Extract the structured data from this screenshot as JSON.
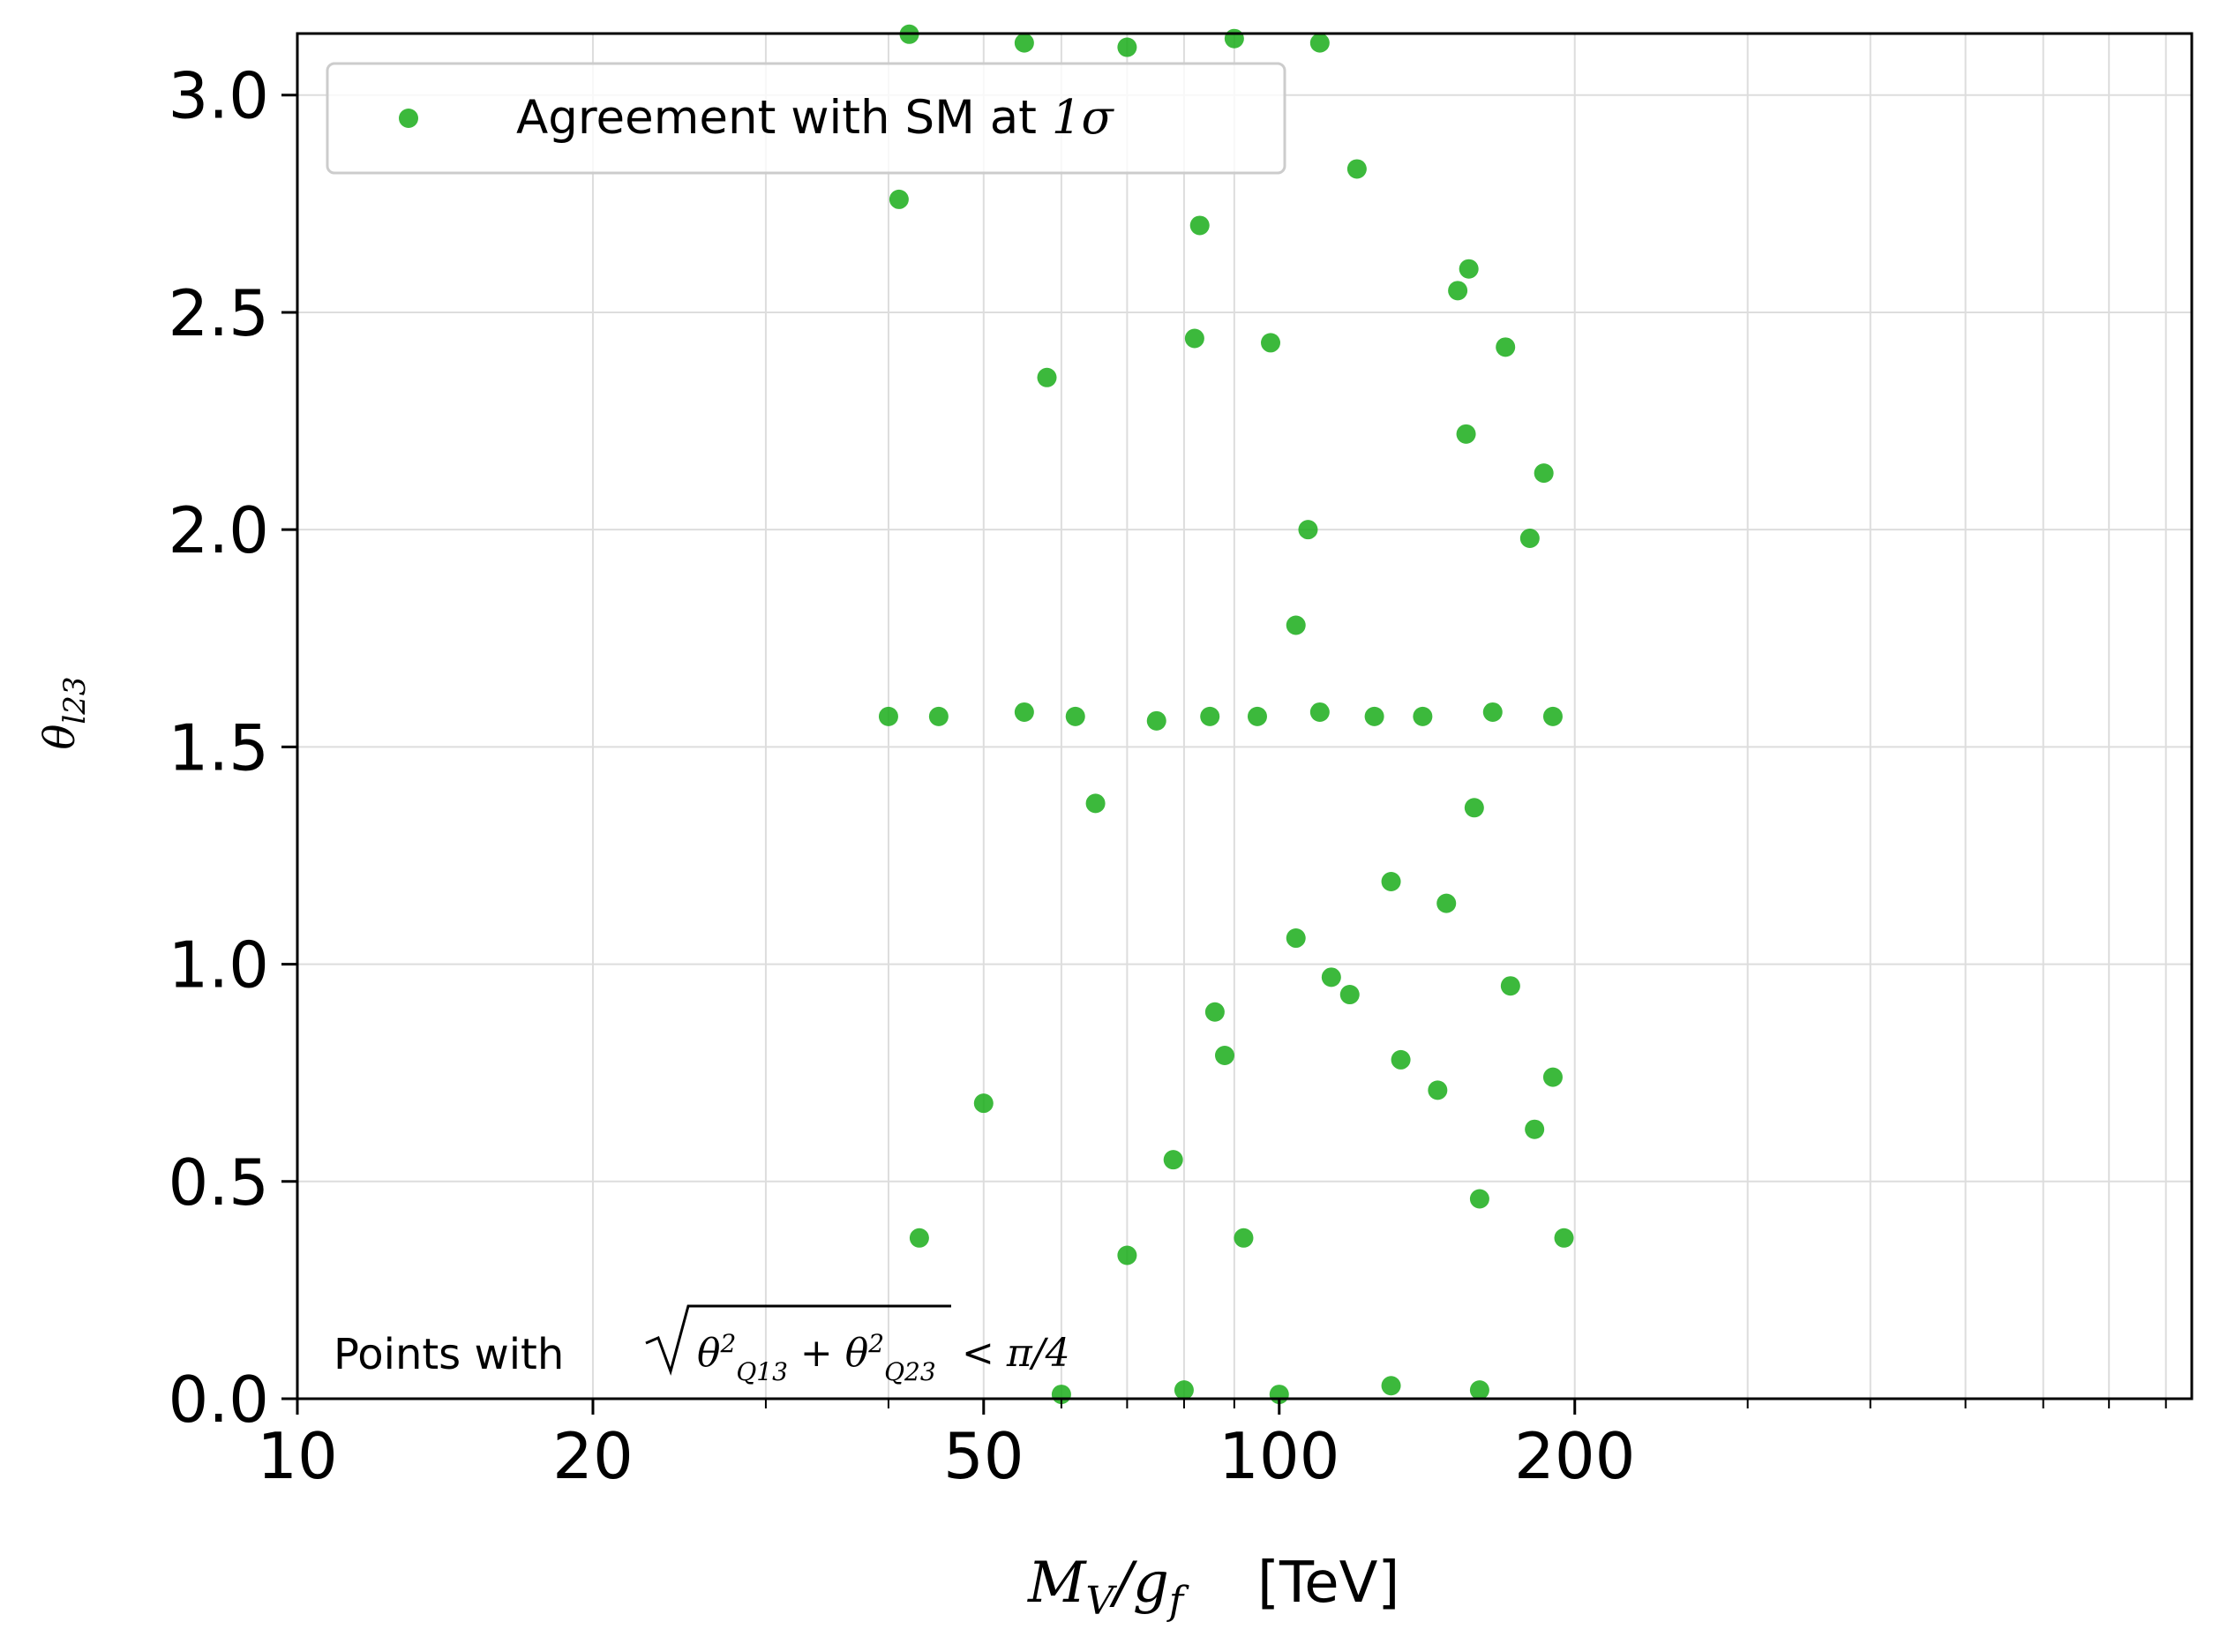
{
  "chart_data": {
    "type": "scatter",
    "xscale": "log",
    "xlim": [
      10,
      850
    ],
    "ylim": [
      0,
      3.1416
    ],
    "grid": true,
    "legend_position": "top-left",
    "xticks": [
      {
        "value": 10,
        "label": "10"
      },
      {
        "value": 20,
        "label": "20"
      },
      {
        "value": 50,
        "label": "50"
      },
      {
        "value": 100,
        "label": "100"
      },
      {
        "value": 200,
        "label": "200"
      }
    ],
    "yticks": [
      {
        "value": 0.0,
        "label": "0.0"
      },
      {
        "value": 0.5,
        "label": "0.5"
      },
      {
        "value": 1.0,
        "label": "1.0"
      },
      {
        "value": 1.5,
        "label": "1.5"
      },
      {
        "value": 2.0,
        "label": "2.0"
      },
      {
        "value": 2.5,
        "label": "2.5"
      },
      {
        "value": 3.0,
        "label": "3.0"
      }
    ],
    "xlabel": {
      "main": "M",
      "sub": "V",
      "slash": "/",
      "main2": "g",
      "sub2": "f",
      "unit": "[TeV]"
    },
    "ylabel": {
      "main": "θ",
      "sub": "l23"
    },
    "annotation": {
      "prefix": "Points with",
      "sqrt_body": "θ²Q13 + θ²Q23",
      "suffix": "< π/4"
    },
    "series": [
      {
        "name": "Agreement with SM at 1σ",
        "color": "#1aad1a",
        "points": [
          [
            41,
            2.76
          ],
          [
            43,
            0.37
          ],
          [
            50,
            0.68
          ],
          [
            58,
            2.35
          ],
          [
            65,
            1.37
          ],
          [
            70,
            0.33
          ],
          [
            78,
            0.55
          ],
          [
            82,
            2.44
          ],
          [
            83,
            2.7
          ],
          [
            86,
            0.89
          ],
          [
            88,
            0.79
          ],
          [
            92,
            0.37
          ],
          [
            98,
            2.43
          ],
          [
            107,
            2.0
          ],
          [
            104,
            1.06
          ],
          [
            104,
            1.78
          ],
          [
            113,
            0.97
          ],
          [
            120,
            2.83
          ],
          [
            118,
            0.93
          ],
          [
            130,
            1.19
          ],
          [
            133,
            0.78
          ],
          [
            145,
            0.71
          ],
          [
            148,
            1.14
          ],
          [
            152,
            2.55
          ],
          [
            155,
            2.22
          ],
          [
            156,
            2.6
          ],
          [
            158,
            1.36
          ],
          [
            160,
            0.46
          ],
          [
            170,
            2.42
          ],
          [
            172,
            0.95
          ],
          [
            180,
            1.98
          ],
          [
            182,
            0.62
          ],
          [
            186,
            2.13
          ],
          [
            190,
            0.74
          ],
          [
            195,
            0.37
          ],
          [
            40,
            1.57
          ],
          [
            45,
            1.57
          ],
          [
            55,
            1.58
          ],
          [
            62,
            1.57
          ],
          [
            75,
            1.56
          ],
          [
            85,
            1.57
          ],
          [
            95,
            1.57
          ],
          [
            110,
            1.58
          ],
          [
            125,
            1.57
          ],
          [
            140,
            1.57
          ],
          [
            165,
            1.58
          ],
          [
            190,
            1.57
          ],
          [
            42,
            3.14
          ],
          [
            55,
            3.12
          ],
          [
            70,
            3.11
          ],
          [
            90,
            3.13
          ],
          [
            110,
            3.12
          ],
          [
            60,
            0.01
          ],
          [
            80,
            0.02
          ],
          [
            100,
            0.01
          ],
          [
            130,
            0.03
          ],
          [
            160,
            0.02
          ]
        ]
      }
    ]
  }
}
